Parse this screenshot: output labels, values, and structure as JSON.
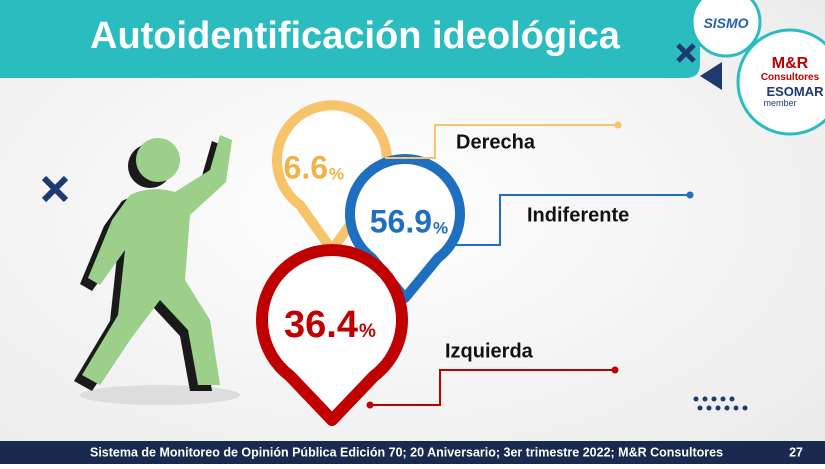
{
  "header": {
    "title": "Autoidentificación ideológica"
  },
  "logos": {
    "sismo": "SISMO",
    "mr_line1": "M&R",
    "mr_line2": "Consultores",
    "esomar": "ESOMAR",
    "member": "member"
  },
  "items": [
    {
      "label": "Derecha",
      "value": 6.6,
      "unit": "%"
    },
    {
      "label": "Indiferente",
      "value": 56.9,
      "unit": "%"
    },
    {
      "label": "Izquierda",
      "value": 36.4,
      "unit": "%"
    }
  ],
  "footer": {
    "text": "Sistema de Monitoreo de Opinión Pública Edición 70; 20 Aniversario; 3er trimestre 2022; M&R Consultores",
    "page": "27"
  }
}
